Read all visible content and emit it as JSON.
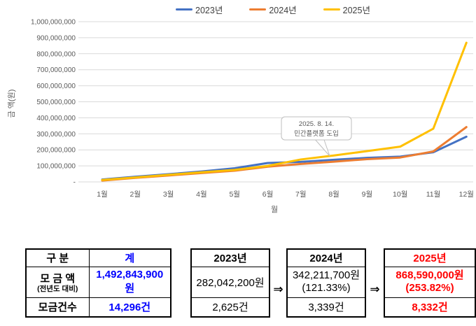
{
  "chart_data": {
    "type": "line",
    "categories": [
      "1월",
      "2월",
      "3월",
      "4월",
      "5월",
      "6월",
      "7월",
      "8월",
      "9월",
      "10월",
      "11월",
      "12월"
    ],
    "series": [
      {
        "name": "2023년",
        "color": "#4472C4",
        "values": [
          15000000,
          32000000,
          48000000,
          65000000,
          85000000,
          118000000,
          125000000,
          138000000,
          150000000,
          158000000,
          185000000,
          282042200
        ]
      },
      {
        "name": "2024년",
        "color": "#ED7D31",
        "values": [
          8000000,
          25000000,
          40000000,
          55000000,
          70000000,
          95000000,
          112000000,
          126000000,
          142000000,
          152000000,
          190000000,
          342211700
        ]
      },
      {
        "name": "2025년",
        "color": "#FFC000",
        "values": [
          12000000,
          28000000,
          44000000,
          60000000,
          75000000,
          100000000,
          140000000,
          165000000,
          192000000,
          220000000,
          332000000,
          868590000
        ]
      }
    ],
    "title": "",
    "xlabel": "월",
    "ylabel": "금 액(원)",
    "ylim": [
      0,
      1000000000
    ],
    "ytick_step": 100000000,
    "zero_tick_label": "-",
    "grid": true,
    "legend_position": "top",
    "annotation": {
      "text": [
        "2025. 8. 14.",
        "민간플랫폼 도입"
      ],
      "target_month": "8월"
    }
  },
  "table": {
    "row_labels": {
      "category": "구  분",
      "amount": "모 금 액",
      "amount_note": "(전년도 대비)",
      "count": "모금건수"
    },
    "arrow": "⇒",
    "colors": {
      "total_accent": "#0000FF",
      "y2025_accent": "#FF0000"
    },
    "columns": [
      {
        "header": "계",
        "amount": "1,492,843,900원",
        "count": "14,296건"
      },
      {
        "header": "2023년",
        "amount": "282,042,200원",
        "count": "2,625건"
      },
      {
        "header": "2024년",
        "amount": "342,211,700원",
        "percent": "(121.33%)",
        "count": "3,339건"
      },
      {
        "header": "2025년",
        "amount": "868,590,000원",
        "percent": "(253.82%)",
        "count": "8,332건"
      }
    ]
  }
}
